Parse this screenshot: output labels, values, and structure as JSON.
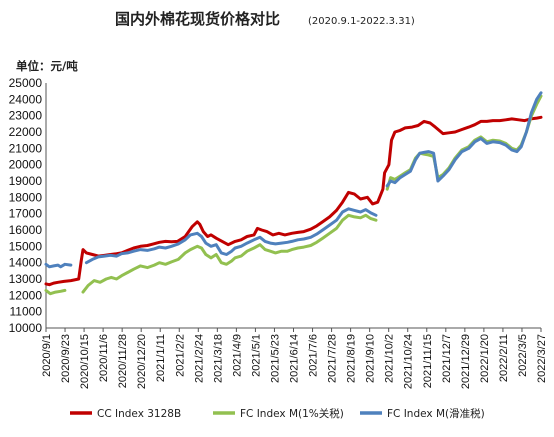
{
  "chart_data": {
    "type": "line",
    "title": "国内外棉花现货价格对比",
    "subtitle": "(2020.9.1-2022.3.31)",
    "unit_label": "单位：元/吨",
    "ylim": [
      10000,
      25000
    ],
    "yticks": [
      10000,
      11000,
      12000,
      13000,
      14000,
      15000,
      16000,
      17000,
      18000,
      19000,
      20000,
      21000,
      22000,
      23000,
      24000,
      25000
    ],
    "xlim": [
      "2020-09-01",
      "2022-03-31"
    ],
    "xtick_labels": [
      "2020/9/1",
      "2020/9/23",
      "2020/10/15",
      "2020/11/6",
      "2020/11/28",
      "2020/12/20",
      "2021/1/11",
      "2021/2/2",
      "2021/2/24",
      "2021/3/18",
      "2021/4/9",
      "2021/5/1",
      "2021/5/23",
      "2021/6/14",
      "2021/7/6",
      "2021/7/28",
      "2021/8/19",
      "2021/9/10",
      "2021/10/2",
      "2021/10/24",
      "2021/11/15",
      "2021/12/7",
      "2021/12/29",
      "2022/1/20",
      "2022/2/11",
      "2022/3/5",
      "2022/3/27"
    ],
    "grid": false,
    "legend_position": "bottom",
    "colors": {
      "cc": "#c00000",
      "fc1": "#92c050",
      "fcm": "#4f81bd"
    },
    "series": [
      {
        "name": "CC Index 3128B",
        "color": "#c00000",
        "points": [
          [
            "2020-09-01",
            12700
          ],
          [
            "2020-09-05",
            12650
          ],
          [
            "2020-09-10",
            12750
          ],
          [
            "2020-09-15",
            12800
          ],
          [
            "2020-09-22",
            12850
          ],
          [
            "2020-09-30",
            12900
          ],
          [
            "2020-10-09",
            13000
          ],
          [
            "2020-10-12",
            14100
          ],
          [
            "2020-10-14",
            14800
          ],
          [
            "2020-10-18",
            14600
          ],
          [
            "2020-10-25",
            14500
          ],
          [
            "2020-11-01",
            14400
          ],
          [
            "2020-11-08",
            14450
          ],
          [
            "2020-11-15",
            14500
          ],
          [
            "2020-11-22",
            14550
          ],
          [
            "2020-11-28",
            14600
          ],
          [
            "2020-12-05",
            14750
          ],
          [
            "2020-12-12",
            14900
          ],
          [
            "2020-12-20",
            15000
          ],
          [
            "2020-12-28",
            15050
          ],
          [
            "2021-01-04",
            15150
          ],
          [
            "2021-01-11",
            15250
          ],
          [
            "2021-01-18",
            15300
          ],
          [
            "2021-01-25",
            15280
          ],
          [
            "2021-02-01",
            15300
          ],
          [
            "2021-02-10",
            15600
          ],
          [
            "2021-02-18",
            16200
          ],
          [
            "2021-02-24",
            16500
          ],
          [
            "2021-02-27",
            16350
          ],
          [
            "2021-03-03",
            15900
          ],
          [
            "2021-03-08",
            15600
          ],
          [
            "2021-03-12",
            15700
          ],
          [
            "2021-03-18",
            15500
          ],
          [
            "2021-03-25",
            15300
          ],
          [
            "2021-04-01",
            15100
          ],
          [
            "2021-04-09",
            15300
          ],
          [
            "2021-04-16",
            15400
          ],
          [
            "2021-04-23",
            15600
          ],
          [
            "2021-05-01",
            15700
          ],
          [
            "2021-05-05",
            16100
          ],
          [
            "2021-05-10",
            16000
          ],
          [
            "2021-05-16",
            15900
          ],
          [
            "2021-05-23",
            15700
          ],
          [
            "2021-05-30",
            15800
          ],
          [
            "2021-06-06",
            15700
          ],
          [
            "2021-06-14",
            15800
          ],
          [
            "2021-06-21",
            15850
          ],
          [
            "2021-06-28",
            15900
          ],
          [
            "2021-07-06",
            16050
          ],
          [
            "2021-07-13",
            16250
          ],
          [
            "2021-07-20",
            16500
          ],
          [
            "2021-07-28",
            16800
          ],
          [
            "2021-08-05",
            17200
          ],
          [
            "2021-08-12",
            17700
          ],
          [
            "2021-08-19",
            18300
          ],
          [
            "2021-08-26",
            18200
          ],
          [
            "2021-09-02",
            17900
          ],
          [
            "2021-09-10",
            18000
          ],
          [
            "2021-09-16",
            17600
          ],
          [
            "2021-09-22",
            17700
          ],
          [
            "2021-09-28",
            18500
          ],
          [
            "2021-09-30",
            19500
          ],
          [
            "2021-10-05",
            20000
          ],
          [
            "2021-10-08",
            21500
          ],
          [
            "2021-10-12",
            22000
          ],
          [
            "2021-10-18",
            22100
          ],
          [
            "2021-10-24",
            22250
          ],
          [
            "2021-11-01",
            22300
          ],
          [
            "2021-11-08",
            22400
          ],
          [
            "2021-11-15",
            22650
          ],
          [
            "2021-11-22",
            22550
          ],
          [
            "2021-11-28",
            22300
          ],
          [
            "2021-12-07",
            21900
          ],
          [
            "2021-12-14",
            21950
          ],
          [
            "2021-12-21",
            22000
          ],
          [
            "2021-12-29",
            22150
          ],
          [
            "2022-01-06",
            22300
          ],
          [
            "2022-01-13",
            22450
          ],
          [
            "2022-01-20",
            22650
          ],
          [
            "2022-01-27",
            22650
          ],
          [
            "2022-02-03",
            22700
          ],
          [
            "2022-02-11",
            22700
          ],
          [
            "2022-02-18",
            22750
          ],
          [
            "2022-02-25",
            22800
          ],
          [
            "2022-03-05",
            22750
          ],
          [
            "2022-03-12",
            22700
          ],
          [
            "2022-03-19",
            22800
          ],
          [
            "2022-03-26",
            22850
          ],
          [
            "2022-03-31",
            22900
          ]
        ]
      },
      {
        "name": "FC Index M(1%关税)",
        "color": "#92c050",
        "points": [
          [
            "2020-09-01",
            12300
          ],
          [
            "2020-09-06",
            12100
          ],
          [
            "2020-09-12",
            12200
          ],
          [
            "2020-09-18",
            12250
          ],
          [
            "2020-09-23",
            12300
          ],
          [
            "2020-09-30",
            null
          ],
          [
            "2020-10-14",
            12200
          ],
          [
            "2020-10-20",
            12600
          ],
          [
            "2020-10-27",
            12900
          ],
          [
            "2020-11-03",
            12800
          ],
          [
            "2020-11-10",
            13000
          ],
          [
            "2020-11-16",
            13100
          ],
          [
            "2020-11-22",
            13000
          ],
          [
            "2020-11-28",
            13200
          ],
          [
            "2020-12-05",
            13400
          ],
          [
            "2020-12-12",
            13600
          ],
          [
            "2020-12-20",
            13800
          ],
          [
            "2020-12-28",
            13700
          ],
          [
            "2021-01-05",
            13850
          ],
          [
            "2021-01-11",
            14000
          ],
          [
            "2021-01-18",
            13900
          ],
          [
            "2021-01-25",
            14050
          ],
          [
            "2021-02-02",
            14200
          ],
          [
            "2021-02-10",
            14600
          ],
          [
            "2021-02-16",
            14800
          ],
          [
            "2021-02-24",
            15000
          ],
          [
            "2021-03-01",
            14900
          ],
          [
            "2021-03-06",
            14500
          ],
          [
            "2021-03-12",
            14300
          ],
          [
            "2021-03-18",
            14500
          ],
          [
            "2021-03-24",
            14000
          ],
          [
            "2021-03-30",
            13900
          ],
          [
            "2021-04-05",
            14100
          ],
          [
            "2021-04-09",
            14300
          ],
          [
            "2021-04-16",
            14400
          ],
          [
            "2021-04-23",
            14700
          ],
          [
            "2021-05-01",
            14900
          ],
          [
            "2021-05-08",
            15100
          ],
          [
            "2021-05-14",
            14800
          ],
          [
            "2021-05-20",
            14700
          ],
          [
            "2021-05-26",
            14600
          ],
          [
            "2021-06-02",
            14700
          ],
          [
            "2021-06-09",
            14700
          ],
          [
            "2021-06-14",
            14800
          ],
          [
            "2021-06-21",
            14900
          ],
          [
            "2021-06-28",
            14950
          ],
          [
            "2021-07-06",
            15050
          ],
          [
            "2021-07-13",
            15250
          ],
          [
            "2021-07-20",
            15500
          ],
          [
            "2021-07-28",
            15800
          ],
          [
            "2021-08-05",
            16100
          ],
          [
            "2021-08-12",
            16600
          ],
          [
            "2021-08-19",
            16900
          ],
          [
            "2021-08-26",
            16800
          ],
          [
            "2021-09-02",
            16750
          ],
          [
            "2021-09-08",
            16900
          ],
          [
            "2021-09-14",
            16700
          ],
          [
            "2021-09-20",
            16600
          ],
          [
            "2021-09-22",
            null
          ],
          [
            "2021-10-03",
            18500
          ],
          [
            "2021-10-07",
            19200
          ],
          [
            "2021-10-12",
            19100
          ],
          [
            "2021-10-18",
            19300
          ],
          [
            "2021-10-24",
            19500
          ],
          [
            "2021-10-30",
            19700
          ],
          [
            "2021-11-05",
            20400
          ],
          [
            "2021-11-10",
            20700
          ],
          [
            "2021-11-15",
            20650
          ],
          [
            "2021-11-20",
            20600
          ],
          [
            "2021-11-26",
            20500
          ],
          [
            "2021-12-01",
            19200
          ],
          [
            "2021-12-07",
            19400
          ],
          [
            "2021-12-14",
            19800
          ],
          [
            "2021-12-21",
            20400
          ],
          [
            "2021-12-29",
            20900
          ],
          [
            "2022-01-06",
            21100
          ],
          [
            "2022-01-13",
            21500
          ],
          [
            "2022-01-20",
            21700
          ],
          [
            "2022-01-27",
            21400
          ],
          [
            "2022-02-03",
            21500
          ],
          [
            "2022-02-11",
            21450
          ],
          [
            "2022-02-18",
            21300
          ],
          [
            "2022-02-25",
            21000
          ],
          [
            "2022-03-03",
            20900
          ],
          [
            "2022-03-08",
            21200
          ],
          [
            "2022-03-14",
            22000
          ],
          [
            "2022-03-20",
            23000
          ],
          [
            "2022-03-26",
            23700
          ],
          [
            "2022-03-31",
            24200
          ]
        ]
      },
      {
        "name": "FC Index M(滑准税)",
        "color": "#4f81bd",
        "points": [
          [
            "2020-09-01",
            13900
          ],
          [
            "2020-09-05",
            13750
          ],
          [
            "2020-09-10",
            13800
          ],
          [
            "2020-09-15",
            13850
          ],
          [
            "2020-09-18",
            13750
          ],
          [
            "2020-09-23",
            13900
          ],
          [
            "2020-09-30",
            13850
          ],
          [
            "2020-10-06",
            null
          ],
          [
            "2020-10-18",
            14000
          ],
          [
            "2020-10-25",
            14200
          ],
          [
            "2020-11-01",
            14350
          ],
          [
            "2020-11-08",
            14400
          ],
          [
            "2020-11-15",
            14450
          ],
          [
            "2020-11-22",
            14400
          ],
          [
            "2020-11-28",
            14550
          ],
          [
            "2020-12-05",
            14600
          ],
          [
            "2020-12-12",
            14700
          ],
          [
            "2020-12-20",
            14800
          ],
          [
            "2020-12-28",
            14750
          ],
          [
            "2021-01-05",
            14850
          ],
          [
            "2021-01-11",
            14950
          ],
          [
            "2021-01-18",
            14900
          ],
          [
            "2021-01-25",
            15000
          ],
          [
            "2021-02-02",
            15150
          ],
          [
            "2021-02-10",
            15400
          ],
          [
            "2021-02-16",
            15700
          ],
          [
            "2021-02-24",
            15800
          ],
          [
            "2021-03-01",
            15600
          ],
          [
            "2021-03-06",
            15200
          ],
          [
            "2021-03-12",
            15000
          ],
          [
            "2021-03-18",
            15100
          ],
          [
            "2021-03-24",
            14600
          ],
          [
            "2021-03-30",
            14500
          ],
          [
            "2021-04-05",
            14700
          ],
          [
            "2021-04-09",
            14900
          ],
          [
            "2021-04-16",
            15000
          ],
          [
            "2021-04-23",
            15200
          ],
          [
            "2021-05-01",
            15400
          ],
          [
            "2021-05-08",
            15550
          ],
          [
            "2021-05-14",
            15300
          ],
          [
            "2021-05-20",
            15200
          ],
          [
            "2021-05-26",
            15150
          ],
          [
            "2021-06-02",
            15200
          ],
          [
            "2021-06-09",
            15250
          ],
          [
            "2021-06-14",
            15300
          ],
          [
            "2021-06-21",
            15400
          ],
          [
            "2021-06-28",
            15450
          ],
          [
            "2021-07-06",
            15550
          ],
          [
            "2021-07-13",
            15750
          ],
          [
            "2021-07-20",
            16000
          ],
          [
            "2021-07-28",
            16300
          ],
          [
            "2021-08-05",
            16600
          ],
          [
            "2021-08-12",
            17100
          ],
          [
            "2021-08-19",
            17300
          ],
          [
            "2021-08-26",
            17200
          ],
          [
            "2021-09-02",
            17100
          ],
          [
            "2021-09-08",
            17250
          ],
          [
            "2021-09-14",
            17050
          ],
          [
            "2021-09-20",
            16900
          ],
          [
            "2021-09-22",
            null
          ],
          [
            "2021-10-03",
            18700
          ],
          [
            "2021-10-07",
            19000
          ],
          [
            "2021-10-12",
            18900
          ],
          [
            "2021-10-18",
            19200
          ],
          [
            "2021-10-24",
            19400
          ],
          [
            "2021-10-30",
            19600
          ],
          [
            "2021-11-05",
            20300
          ],
          [
            "2021-11-10",
            20700
          ],
          [
            "2021-11-15",
            20750
          ],
          [
            "2021-11-20",
            20800
          ],
          [
            "2021-11-26",
            20700
          ],
          [
            "2021-12-01",
            19000
          ],
          [
            "2021-12-07",
            19300
          ],
          [
            "2021-12-14",
            19700
          ],
          [
            "2021-12-21",
            20300
          ],
          [
            "2021-12-29",
            20800
          ],
          [
            "2022-01-06",
            21000
          ],
          [
            "2022-01-13",
            21400
          ],
          [
            "2022-01-20",
            21600
          ],
          [
            "2022-01-27",
            21300
          ],
          [
            "2022-02-03",
            21400
          ],
          [
            "2022-02-11",
            21350
          ],
          [
            "2022-02-18",
            21200
          ],
          [
            "2022-02-25",
            20900
          ],
          [
            "2022-03-03",
            20800
          ],
          [
            "2022-03-08",
            21100
          ],
          [
            "2022-03-14",
            22000
          ],
          [
            "2022-03-20",
            23200
          ],
          [
            "2022-03-26",
            24000
          ],
          [
            "2022-03-31",
            24400
          ]
        ]
      }
    ]
  }
}
